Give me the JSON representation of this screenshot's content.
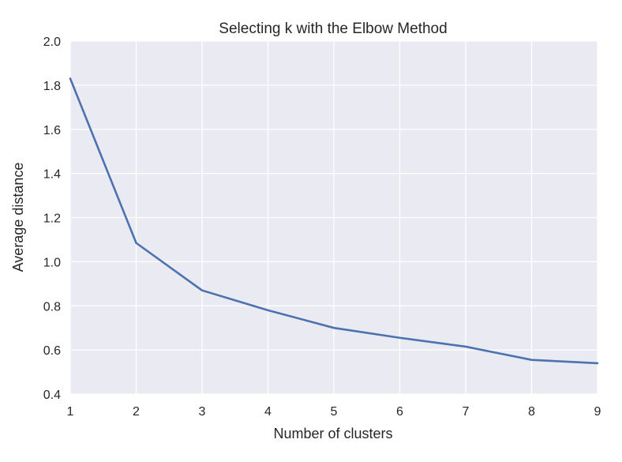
{
  "chart_data": {
    "type": "line",
    "title": "Selecting k with the Elbow Method",
    "xlabel": "Number of clusters",
    "ylabel": "Average distance",
    "x": [
      1,
      2,
      3,
      4,
      5,
      6,
      7,
      8,
      9
    ],
    "series": [
      {
        "values": [
          1.83,
          1.085,
          0.87,
          0.78,
          0.7,
          0.655,
          0.615,
          0.555,
          0.54
        ]
      }
    ],
    "xlim": [
      1,
      9
    ],
    "ylim": [
      0.4,
      2.0
    ],
    "xticks": [
      "1",
      "2",
      "3",
      "4",
      "5",
      "6",
      "7",
      "8",
      "9"
    ],
    "yticks": [
      "0.4",
      "0.6",
      "0.8",
      "1.0",
      "1.2",
      "1.4",
      "1.6",
      "1.8",
      "2.0"
    ],
    "grid": true,
    "colors": {
      "line": "#4C72B0",
      "plot_background": "#EAEAF2",
      "grid": "#FFFFFF"
    }
  }
}
